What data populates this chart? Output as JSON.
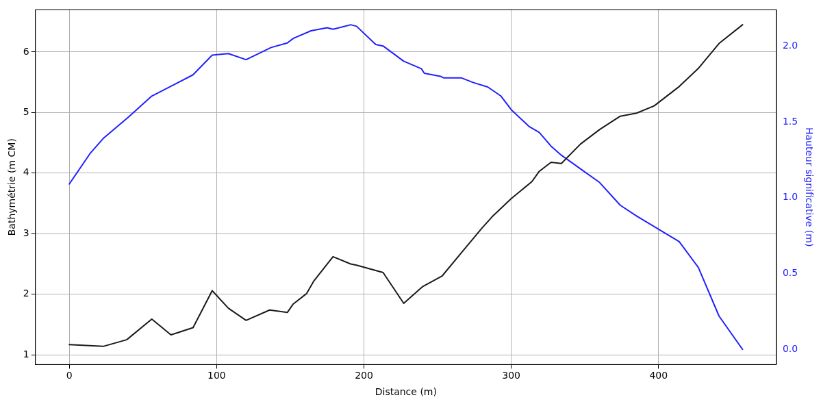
{
  "chart_data": {
    "type": "line",
    "xlabel": "Distance (m)",
    "ylabel": "Bathymétrie (m CM)",
    "y2label": "Hauteur significative (m)",
    "xlim": [
      -23,
      480
    ],
    "xticks": [
      0,
      100,
      200,
      300,
      400
    ],
    "ylim": [
      0.84,
      6.7
    ],
    "yticks": [
      1,
      2,
      3,
      4,
      5,
      6
    ],
    "y2lim": [
      -0.1,
      2.24
    ],
    "y2ticks": [
      {
        "value": 0,
        "label": "0.0"
      },
      {
        "value": 0.5,
        "label": "0.5"
      },
      {
        "value": 1,
        "label": "1.0"
      },
      {
        "value": 1.5,
        "label": "1.5"
      },
      {
        "value": 2,
        "label": "2.0"
      }
    ],
    "grid": true,
    "legend": false,
    "marker": "none",
    "line_style": "solid",
    "series": [
      {
        "color": "#1a1a1a",
        "x": [
          0,
          23,
          39,
          56,
          69,
          84,
          97,
          108,
          120,
          136,
          148,
          152,
          161,
          166,
          179,
          191,
          195,
          213,
          227,
          240,
          253,
          267,
          280,
          287,
          300,
          314,
          319,
          327,
          334,
          347,
          360,
          374,
          385,
          397,
          414,
          427,
          441,
          457
        ],
        "values": [
          1.17,
          1.14,
          1.25,
          1.59,
          1.33,
          1.45,
          2.06,
          1.77,
          1.57,
          1.74,
          1.7,
          1.84,
          2.01,
          2.22,
          2.62,
          2.5,
          2.48,
          2.36,
          1.85,
          2.13,
          2.3,
          2.71,
          3.09,
          3.28,
          3.58,
          3.86,
          4.03,
          4.18,
          4.16,
          4.48,
          4.72,
          4.94,
          4.99,
          5.11,
          5.43,
          5.73,
          6.14,
          6.45
        ]
      },
      {
        "color": "#2020ff",
        "axis": "y2",
        "x": [
          0,
          14,
          23,
          40,
          56,
          72,
          84,
          97,
          108,
          120,
          137,
          148,
          152,
          164,
          175,
          179,
          191,
          195,
          208,
          213,
          227,
          239,
          241,
          252,
          254,
          266,
          274,
          284,
          293,
          300,
          312,
          319,
          327,
          334,
          347,
          360,
          374,
          385,
          414,
          427,
          441,
          457
        ],
        "values": [
          1.09,
          1.29,
          1.39,
          1.53,
          1.67,
          1.75,
          1.81,
          1.94,
          1.95,
          1.91,
          1.99,
          2.02,
          2.05,
          2.1,
          2.12,
          2.11,
          2.14,
          2.13,
          2.01,
          2.0,
          1.9,
          1.85,
          1.82,
          1.8,
          1.79,
          1.79,
          1.76,
          1.73,
          1.67,
          1.58,
          1.47,
          1.43,
          1.34,
          1.28,
          1.19,
          1.1,
          0.95,
          0.88,
          0.71,
          0.54,
          0.22,
          0.0
        ]
      }
    ]
  }
}
